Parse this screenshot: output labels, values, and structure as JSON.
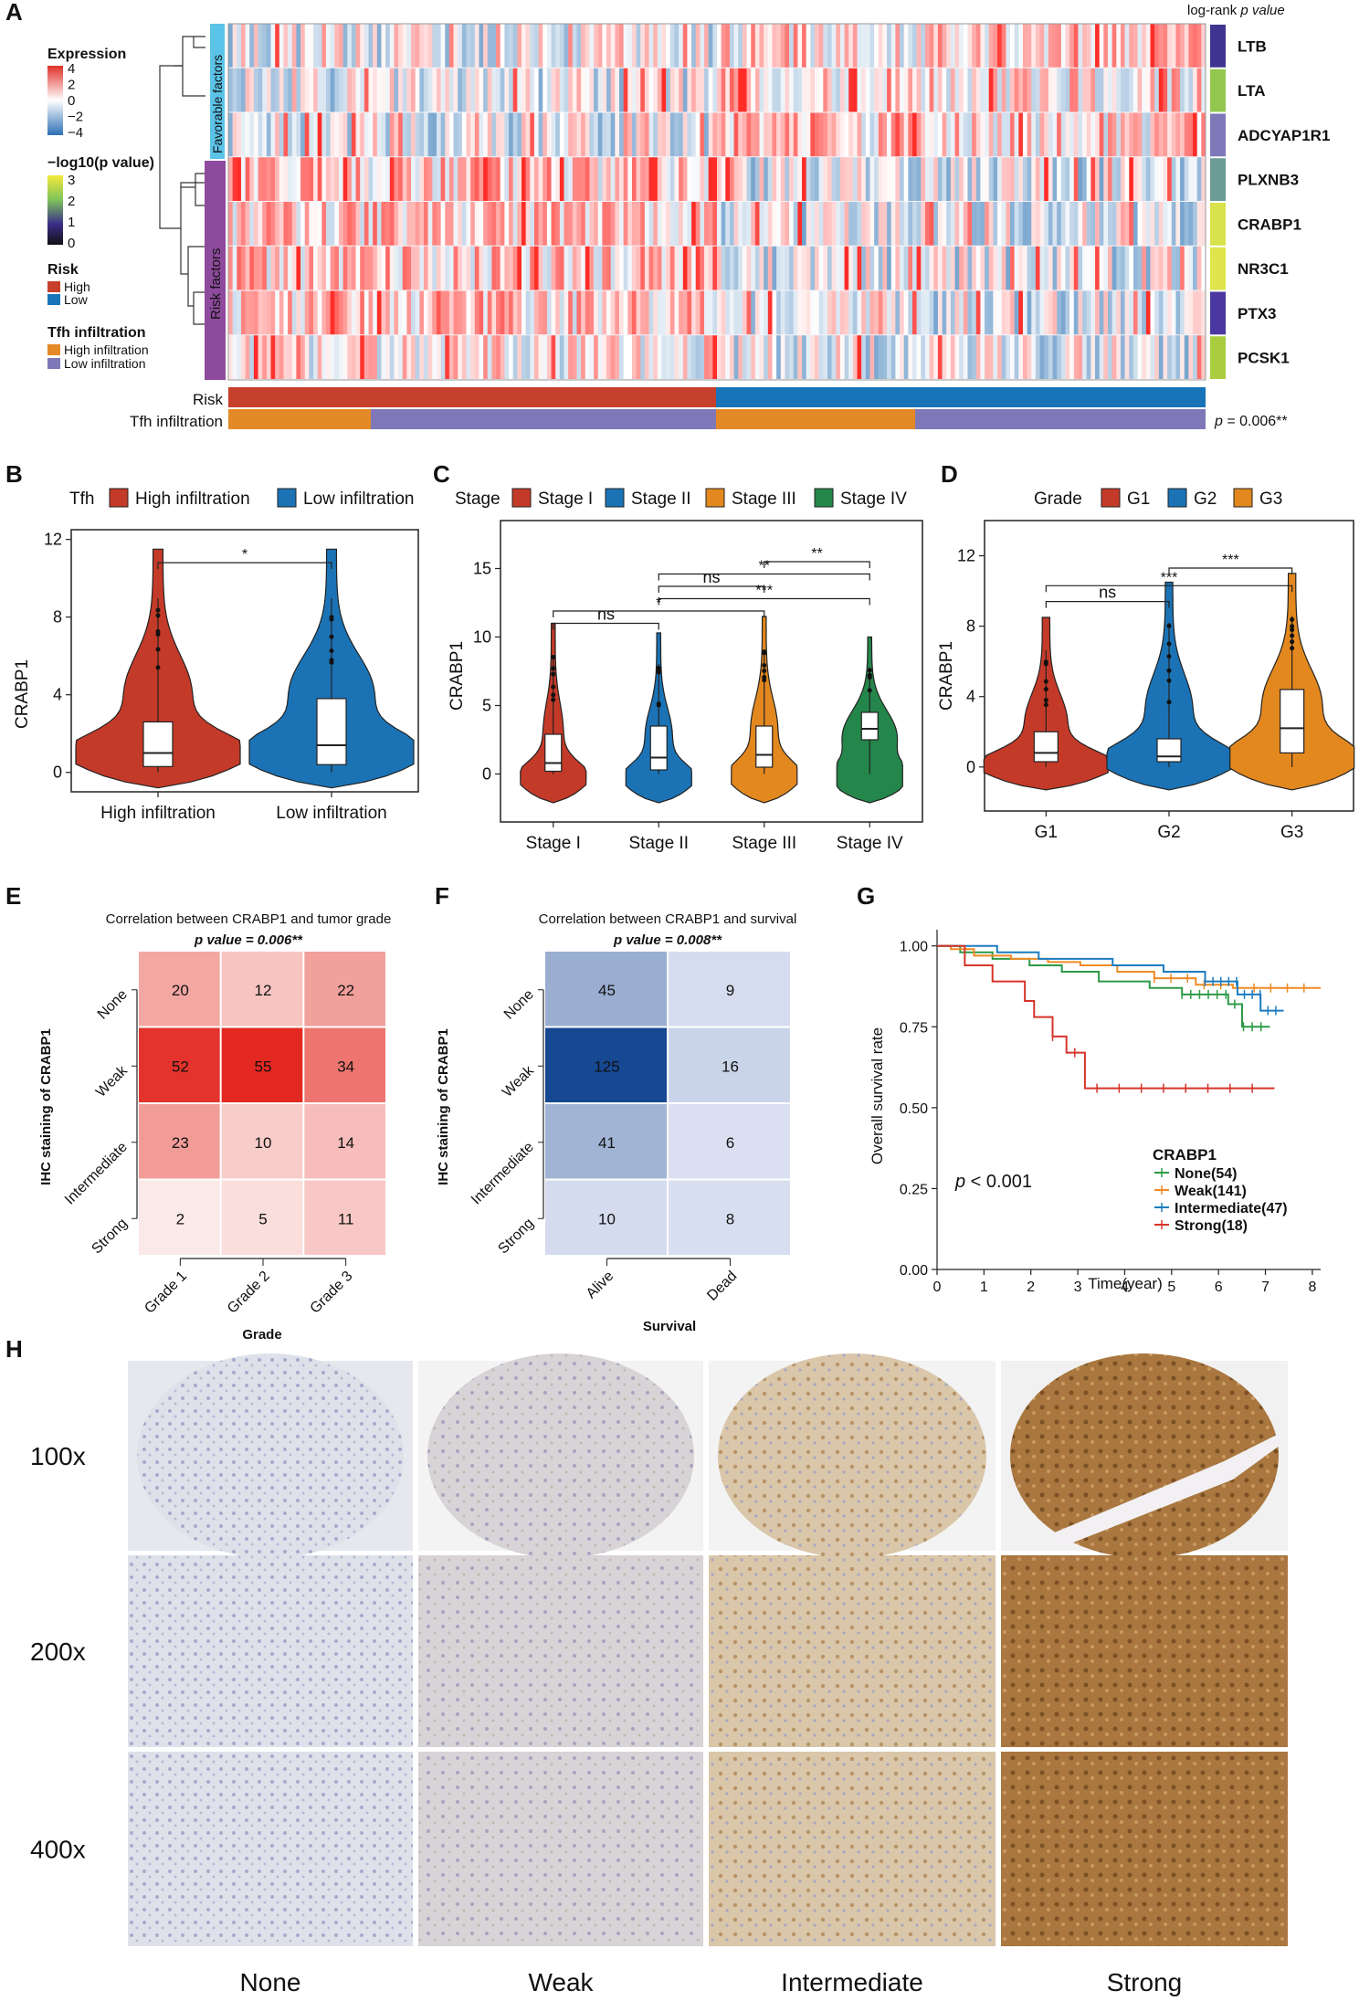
{
  "panel_labels": {
    "A": "A",
    "B": "B",
    "C": "C",
    "D": "D",
    "E": "E",
    "F": "F",
    "G": "G",
    "H": "H"
  },
  "colors": {
    "risk_high": "#c7402b",
    "risk_low": "#1874b8",
    "tfh_high": "#e38a27",
    "tfh_low": "#7f78b8",
    "violin_red": "#c43a29",
    "violin_blue": "#1b73b5",
    "violin_orange": "#e2881f",
    "violin_green": "#24864a",
    "favorable": "#5cc3e8",
    "risk_factor": "#8e4a9c",
    "km_none": "#2d9a46",
    "km_weak": "#ef8a25",
    "km_intermediate": "#1c7cc0",
    "km_strong": "#d6342a"
  },
  "panelA": {
    "legend_expression_title": "Expression",
    "legend_expression_ticks": [
      "4",
      "2",
      "0",
      "−2",
      "−4"
    ],
    "legend_pvalue_title": "−log10(p value)",
    "legend_pvalue_ticks": [
      "3",
      "2",
      "1",
      "0"
    ],
    "legend_risk_title": "Risk",
    "legend_risk_items": [
      "High",
      "Low"
    ],
    "legend_tfh_title": "Tfh infiltration",
    "legend_tfh_items": [
      "High infiltration",
      "Low infiltration"
    ],
    "group_favorable": "Favorable factors",
    "group_risk": "Risk factors",
    "logrank_header_prefix": "log-rank ",
    "logrank_header_p": "p value",
    "genes": [
      "LTB",
      "LTA",
      "ADCYAP1R1",
      "PLXNB3",
      "CRABP1",
      "NR3C1",
      "PTX3",
      "PCSK1"
    ],
    "gene_pvalue_colors": [
      "#3f3591",
      "#93c750",
      "#7f78b8",
      "#6b9c95",
      "#d8e24a",
      "#dfe54a",
      "#4a37a0",
      "#a9cd3e"
    ],
    "bar_risk_label": "Risk",
    "bar_tfh_label": "Tfh infiltration",
    "p_text_prefix": "p",
    "p_text_value": " = 0.006**"
  },
  "panelB": {
    "legend_title": "Tfh",
    "legend_items": [
      "High infiltration",
      "Low infiltration"
    ],
    "ylabel": "CRABP1",
    "yticks": [
      "0",
      "4",
      "8",
      "12"
    ],
    "categories": [
      "High infiltration",
      "Low infiltration"
    ],
    "sig": [
      "*"
    ]
  },
  "panelC": {
    "legend_title": "Stage",
    "legend_items": [
      "Stage I",
      "Stage II",
      "Stage III",
      "Stage IV"
    ],
    "ylabel": "CRABP1",
    "yticks": [
      "0",
      "5",
      "10",
      "15"
    ],
    "categories": [
      "Stage I",
      "Stage II",
      "Stage III",
      "Stage IV"
    ],
    "sig": [
      "**",
      "**",
      "ns",
      "***",
      "*",
      "ns"
    ]
  },
  "panelD": {
    "legend_title": "Grade",
    "legend_items": [
      "G1",
      "G2",
      "G3"
    ],
    "ylabel": "CRABP1",
    "yticks": [
      "0",
      "4",
      "8",
      "12"
    ],
    "categories": [
      "G1",
      "G2",
      "G3"
    ],
    "sig": [
      "***",
      "***",
      "ns"
    ]
  },
  "panelE": {
    "title": "Correlation between CRABP1 and tumor grade",
    "pvalue_text": "p value =  0.006**",
    "ylabel": "IHC staining of CRABP1",
    "xlabel": "Grade",
    "rows": [
      "None",
      "Weak",
      "Intermediate",
      "Strong"
    ],
    "cols": [
      "Grade 1",
      "Grade 2",
      "Grade 3"
    ]
  },
  "panelF": {
    "title": "Correlation between CRABP1 and survival",
    "pvalue_text": "p value =  0.008**",
    "ylabel": "IHC staining of CRABP1",
    "xlabel": "Survival",
    "rows": [
      "None",
      "Weak",
      "Intermediate",
      "Strong"
    ],
    "cols": [
      "Alive",
      "Dead"
    ]
  },
  "panelG": {
    "ylabel": "Overall survival rate",
    "xlabel": "Time(year)",
    "yticks": [
      "0.00",
      "0.25",
      "0.50",
      "0.75",
      "1.00"
    ],
    "xticks": [
      "0",
      "1",
      "2",
      "3",
      "4",
      "5",
      "6",
      "7",
      "8"
    ],
    "p_prefix": "p",
    "p_value": " < 0.001",
    "legend_title": "CRABP1",
    "legend_items": [
      "None(54)",
      "Weak(141)",
      "Intermediate(47)",
      "Strong(18)"
    ]
  },
  "panelH": {
    "magnifications": [
      "100x",
      "200x",
      "400x"
    ],
    "columns": [
      "None",
      "Weak",
      "Intermediate",
      "Strong"
    ]
  },
  "chart_data": [
    {
      "type": "heatmap",
      "panel": "A",
      "rows": [
        "LTB",
        "LTA",
        "ADCYAP1R1",
        "PLXNB3",
        "CRABP1",
        "NR3C1",
        "PTX3",
        "PCSK1"
      ],
      "groups": {
        "Favorable factors": [
          "LTB",
          "LTA",
          "ADCYAP1R1"
        ],
        "Risk factors": [
          "PLXNB3",
          "CRABP1",
          "NR3C1",
          "PTX3",
          "PCSK1"
        ]
      },
      "color_scale": {
        "min": -4,
        "max": 4
      },
      "annotations": [
        "Risk",
        "Tfh infiltration"
      ],
      "logrank_p": "0.006**"
    },
    {
      "type": "violin",
      "panel": "B",
      "title": "",
      "categories": [
        "High infiltration",
        "Low infiltration"
      ],
      "ylabel": "CRABP1",
      "ylim": [
        -1,
        12.5
      ],
      "median": [
        1.0,
        1.4
      ],
      "q1": [
        0.3,
        0.4
      ],
      "q3": [
        2.6,
        3.8
      ],
      "max": [
        11.5,
        11.5
      ],
      "comparisons": [
        {
          "a": 0,
          "b": 1,
          "label": "*",
          "y": 10.8
        }
      ]
    },
    {
      "type": "violin",
      "panel": "C",
      "title": "",
      "categories": [
        "Stage I",
        "Stage II",
        "Stage III",
        "Stage IV"
      ],
      "ylabel": "CRABP1",
      "ylim": [
        -3.5,
        18.5
      ],
      "median": [
        0.8,
        1.2,
        1.4,
        3.3
      ],
      "q1": [
        0.2,
        0.3,
        0.5,
        2.5
      ],
      "q3": [
        2.9,
        3.5,
        3.5,
        4.5
      ],
      "max": [
        11,
        10.3,
        11.5,
        10
      ],
      "comparisons": [
        {
          "a": 2,
          "b": 3,
          "label": "**",
          "y": 15.5
        },
        {
          "a": 1,
          "b": 3,
          "label": "**",
          "y": 14.6
        },
        {
          "a": 1,
          "b": 2,
          "label": "ns",
          "y": 13.7
        },
        {
          "a": 1,
          "b": 3,
          "label": "***",
          "y": 12.8
        },
        {
          "a": 0,
          "b": 2,
          "label": "*",
          "y": 11.9
        },
        {
          "a": 0,
          "b": 1,
          "label": "ns",
          "y": 11.0
        }
      ]
    },
    {
      "type": "violin",
      "panel": "D",
      "title": "",
      "categories": [
        "G1",
        "G2",
        "G3"
      ],
      "ylabel": "CRABP1",
      "ylim": [
        -2.5,
        14
      ],
      "median": [
        0.8,
        0.6,
        2.2
      ],
      "q1": [
        0.3,
        0.3,
        0.8
      ],
      "q3": [
        2.0,
        1.6,
        4.4
      ],
      "max": [
        8.5,
        10.5,
        11
      ],
      "comparisons": [
        {
          "a": 1,
          "b": 2,
          "label": "***",
          "y": 11.3
        },
        {
          "a": 0,
          "b": 2,
          "label": "***",
          "y": 10.3
        },
        {
          "a": 0,
          "b": 1,
          "label": "ns",
          "y": 9.4
        }
      ]
    },
    {
      "type": "heatmap",
      "panel": "E",
      "title": "Correlation between CRABP1 and tumor grade",
      "rows": [
        "None",
        "Weak",
        "Intermediate",
        "Strong"
      ],
      "cols": [
        "Grade 1",
        "Grade 2",
        "Grade 3"
      ],
      "values": [
        [
          20,
          12,
          22
        ],
        [
          52,
          55,
          34
        ],
        [
          23,
          10,
          14
        ],
        [
          2,
          5,
          11
        ]
      ],
      "p_value": "0.006**"
    },
    {
      "type": "heatmap",
      "panel": "F",
      "title": "Correlation between CRABP1 and survival",
      "rows": [
        "None",
        "Weak",
        "Intermediate",
        "Strong"
      ],
      "cols": [
        "Alive",
        "Dead"
      ],
      "values": [
        [
          45,
          9
        ],
        [
          125,
          16
        ],
        [
          41,
          6
        ],
        [
          10,
          8
        ]
      ],
      "p_value": "0.008**"
    },
    {
      "type": "line",
      "panel": "G",
      "title": "",
      "xlabel": "Time(year)",
      "ylabel": "Overall survival rate",
      "xlim": [
        0,
        8.3
      ],
      "ylim": [
        0,
        1.05
      ],
      "p_value": "< 0.001",
      "series": [
        {
          "name": "None(54)",
          "x": [
            0,
            0.5,
            1.2,
            2.0,
            2.7,
            3.5,
            4.6,
            5.3,
            6.3,
            6.6,
            7.2
          ],
          "y": [
            1.0,
            0.98,
            0.96,
            0.94,
            0.92,
            0.89,
            0.87,
            0.85,
            0.82,
            0.75,
            0.75
          ]
        },
        {
          "name": "Weak(141)",
          "x": [
            0,
            0.3,
            0.8,
            1.6,
            2.4,
            3.1,
            3.9,
            4.7,
            5.6,
            6.4,
            8.3
          ],
          "y": [
            1.0,
            0.99,
            0.97,
            0.96,
            0.95,
            0.94,
            0.92,
            0.9,
            0.88,
            0.87,
            0.87
          ]
        },
        {
          "name": "Intermediate(47)",
          "x": [
            0,
            1.3,
            2.2,
            3.8,
            4.9,
            5.8,
            6.5,
            7.0,
            7.5
          ],
          "y": [
            1.0,
            0.98,
            0.96,
            0.94,
            0.92,
            0.89,
            0.85,
            0.8,
            0.8
          ]
        },
        {
          "name": "Strong(18)",
          "x": [
            0,
            0.6,
            1.2,
            1.9,
            2.1,
            2.5,
            2.8,
            3.2,
            7.3
          ],
          "y": [
            1.0,
            0.94,
            0.89,
            0.83,
            0.78,
            0.72,
            0.67,
            0.56,
            0.56
          ]
        }
      ]
    }
  ]
}
